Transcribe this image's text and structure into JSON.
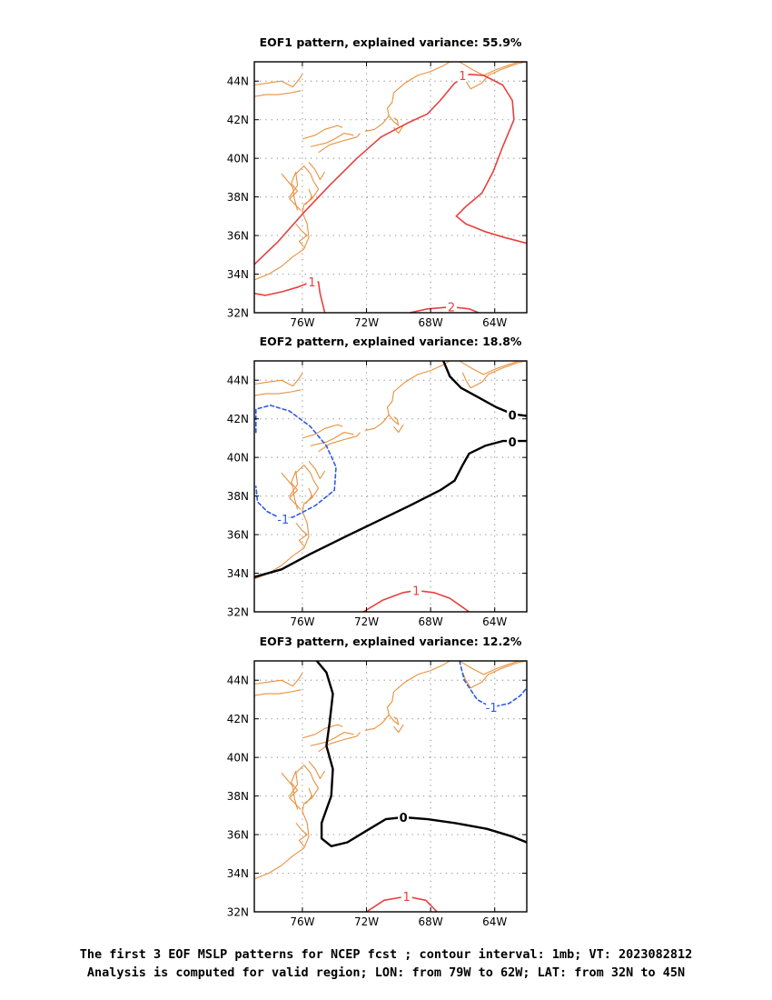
{
  "caption": {
    "line1": "The first 3 EOF MSLP patterns for NCEP fcst ; contour interval: 1mb; VT: 2023082812",
    "line2": "Analysis is computed for valid region; LON: from 79W to 62W; LAT: from 32N to 45N"
  },
  "colors": {
    "coast": "#e8913e",
    "positive": "#e8403e",
    "zero": "#000000",
    "negative": "#2e5be6",
    "grid": "#9a9a9a"
  },
  "chart_data": [
    {
      "type": "contour-map",
      "title": "EOF1 pattern, explained variance: 55.9%",
      "xlim": [
        -79,
        -62
      ],
      "ylim": [
        32,
        45
      ],
      "x_ticks": [
        -76,
        -72,
        -68,
        -64
      ],
      "x_tick_labels": [
        "76W",
        "72W",
        "68W",
        "64W"
      ],
      "y_ticks": [
        32,
        34,
        36,
        38,
        40,
        42,
        44
      ],
      "y_tick_labels": [
        "32N",
        "34N",
        "36N",
        "38N",
        "40N",
        "42N",
        "44N"
      ],
      "grid": true,
      "contours": [
        {
          "level": 1,
          "label": "1",
          "style": "solid",
          "color": "positive",
          "label_at": [
            -66.0,
            44.3
          ],
          "points": [
            [
              -79,
              34.5
            ],
            [
              -77.5,
              35.7
            ],
            [
              -75.9,
              37.2
            ],
            [
              -74.3,
              38.6
            ],
            [
              -72.6,
              40.0
            ],
            [
              -71.1,
              41.1
            ],
            [
              -69.5,
              41.8
            ],
            [
              -68.2,
              42.3
            ],
            [
              -67.4,
              43.0
            ],
            [
              -66.5,
              43.9
            ],
            [
              -65.6,
              44.35
            ],
            [
              -64.7,
              44.3
            ],
            [
              -63.5,
              43.8
            ],
            [
              -62.9,
              43.0
            ],
            [
              -62.8,
              42.0
            ],
            [
              -63.5,
              40.6
            ],
            [
              -64.1,
              39.3
            ],
            [
              -64.8,
              38.2
            ],
            [
              -65.8,
              37.5
            ],
            [
              -66.4,
              37.0
            ],
            [
              -65.8,
              36.6
            ],
            [
              -64.6,
              36.2
            ],
            [
              -63.4,
              35.9
            ],
            [
              -62,
              35.6
            ]
          ]
        },
        {
          "level": 1,
          "label": "1",
          "style": "solid",
          "color": "positive",
          "label_at": [
            -75.4,
            33.6
          ],
          "points": [
            [
              -79,
              33.0
            ],
            [
              -78.3,
              32.9
            ],
            [
              -77.2,
              33.1
            ],
            [
              -76.2,
              33.35
            ],
            [
              -75.6,
              33.55
            ],
            [
              -75.0,
              33.6
            ],
            [
              -74.9,
              33.0
            ],
            [
              -74.6,
              32.0
            ]
          ]
        },
        {
          "level": 2,
          "label": "2",
          "style": "solid",
          "color": "positive",
          "label_at": [
            -66.7,
            32.3
          ],
          "points": [
            [
              -69.3,
              32.0
            ],
            [
              -68.2,
              32.2
            ],
            [
              -66.7,
              32.3
            ],
            [
              -65.6,
              32.2
            ],
            [
              -65.0,
              32.0
            ]
          ]
        }
      ]
    },
    {
      "type": "contour-map",
      "title": "EOF2 pattern, explained variance: 18.8%",
      "xlim": [
        -79,
        -62
      ],
      "ylim": [
        32,
        45
      ],
      "x_ticks": [
        -76,
        -72,
        -68,
        -64
      ],
      "x_tick_labels": [
        "76W",
        "72W",
        "68W",
        "64W"
      ],
      "y_ticks": [
        32,
        34,
        36,
        38,
        40,
        42,
        44
      ],
      "y_tick_labels": [
        "32N",
        "34N",
        "36N",
        "38N",
        "40N",
        "42N",
        "44N"
      ],
      "grid": true,
      "contours": [
        {
          "level": 0,
          "label": "0",
          "style": "bold",
          "color": "zero",
          "label_at": [
            -62.9,
            42.2
          ],
          "points": [
            [
              -67.2,
              45.0
            ],
            [
              -66.8,
              44.2
            ],
            [
              -66.1,
              43.6
            ],
            [
              -65.0,
              43.1
            ],
            [
              -63.9,
              42.6
            ],
            [
              -62.9,
              42.25
            ],
            [
              -62,
              42.15
            ]
          ]
        },
        {
          "level": 0,
          "label": "0",
          "style": "bold",
          "color": "zero",
          "label_at": [
            -62.9,
            40.8
          ],
          "points": [
            [
              -79,
              33.8
            ],
            [
              -77.3,
              34.2
            ],
            [
              -75.5,
              35.0
            ],
            [
              -73.3,
              35.9
            ],
            [
              -71.3,
              36.7
            ],
            [
              -69.3,
              37.5
            ],
            [
              -67.4,
              38.3
            ],
            [
              -66.5,
              38.8
            ],
            [
              -66.0,
              39.6
            ],
            [
              -65.6,
              40.2
            ],
            [
              -64.6,
              40.6
            ],
            [
              -63.5,
              40.85
            ],
            [
              -62,
              40.85
            ]
          ]
        },
        {
          "level": -1,
          "label": "-1",
          "style": "dashed",
          "color": "negative",
          "label_at": [
            -77.2,
            36.8
          ],
          "points": [
            [
              -78.9,
              41.3
            ],
            [
              -78.9,
              42.5
            ],
            [
              -78.0,
              42.7
            ],
            [
              -76.8,
              42.4
            ],
            [
              -75.5,
              41.6
            ],
            [
              -74.5,
              40.6
            ],
            [
              -73.9,
              39.5
            ],
            [
              -74.0,
              38.3
            ],
            [
              -75.2,
              37.5
            ],
            [
              -76.6,
              36.9
            ],
            [
              -77.5,
              36.9
            ],
            [
              -78.2,
              37.2
            ],
            [
              -78.8,
              37.7
            ],
            [
              -78.9,
              38.5
            ]
          ]
        },
        {
          "level": 1,
          "label": "1",
          "style": "solid",
          "color": "positive",
          "label_at": [
            -68.9,
            33.1
          ],
          "points": [
            [
              -72.2,
              32.0
            ],
            [
              -71.0,
              32.6
            ],
            [
              -69.7,
              33.0
            ],
            [
              -68.9,
              33.1
            ],
            [
              -67.8,
              33.0
            ],
            [
              -66.8,
              32.7
            ],
            [
              -65.6,
              32.0
            ]
          ]
        }
      ]
    },
    {
      "type": "contour-map",
      "title": "EOF3 pattern, explained variance: 12.2%",
      "xlim": [
        -79,
        -62
      ],
      "ylim": [
        32,
        45
      ],
      "x_ticks": [
        -76,
        -72,
        -68,
        -64
      ],
      "x_tick_labels": [
        "76W",
        "72W",
        "68W",
        "64W"
      ],
      "y_ticks": [
        32,
        34,
        36,
        38,
        40,
        42,
        44
      ],
      "y_tick_labels": [
        "32N",
        "34N",
        "36N",
        "38N",
        "40N",
        "42N",
        "44N"
      ],
      "grid": true,
      "contours": [
        {
          "level": 0,
          "label": "0",
          "style": "bold",
          "color": "zero",
          "label_at": [
            -69.7,
            36.9
          ],
          "points": [
            [
              -75.1,
              45.0
            ],
            [
              -74.5,
              44.4
            ],
            [
              -74.1,
              43.3
            ],
            [
              -74.3,
              41.8
            ],
            [
              -74.5,
              40.6
            ],
            [
              -74.1,
              39.4
            ],
            [
              -74.2,
              38.0
            ],
            [
              -74.8,
              36.6
            ],
            [
              -74.8,
              35.8
            ],
            [
              -74.2,
              35.4
            ],
            [
              -73.2,
              35.6
            ],
            [
              -72.0,
              36.2
            ],
            [
              -70.8,
              36.8
            ],
            [
              -69.7,
              36.9
            ],
            [
              -68.2,
              36.8
            ],
            [
              -66.5,
              36.6
            ],
            [
              -64.5,
              36.3
            ],
            [
              -62.9,
              35.9
            ],
            [
              -62,
              35.6
            ]
          ]
        },
        {
          "level": -1,
          "label": "-1",
          "style": "dashed",
          "color": "negative",
          "label_at": [
            -64.2,
            42.6
          ],
          "points": [
            [
              -66.2,
              45.0
            ],
            [
              -65.9,
              44.0
            ],
            [
              -65.1,
              43.0
            ],
            [
              -64.2,
              42.6
            ],
            [
              -63.1,
              42.8
            ],
            [
              -62.4,
              43.2
            ],
            [
              -62,
              43.6
            ]
          ]
        },
        {
          "level": 1,
          "label": "1",
          "style": "solid",
          "color": "positive",
          "label_at": [
            -69.5,
            32.8
          ],
          "points": [
            [
              -72.0,
              32.0
            ],
            [
              -70.9,
              32.6
            ],
            [
              -69.5,
              32.8
            ],
            [
              -68.3,
              32.6
            ],
            [
              -67.6,
              32.0
            ]
          ]
        }
      ]
    }
  ]
}
